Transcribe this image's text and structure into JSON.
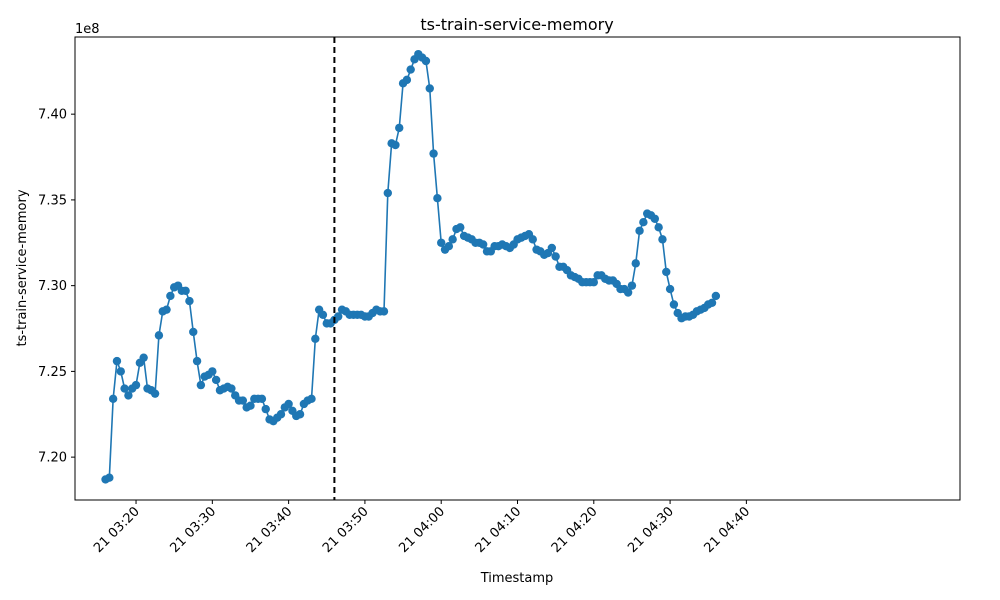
{
  "chart_data": {
    "type": "line",
    "title": "ts-train-service-memory",
    "xlabel": "Timestamp",
    "ylabel": "ts-train-service-memory",
    "offset_label": "1e8",
    "xlim_minutes": [
      12,
      128
    ],
    "ylim": [
      7.175,
      7.445
    ],
    "y_ticks": [
      7.2,
      7.25,
      7.3,
      7.35,
      7.4
    ],
    "y_tick_labels": [
      "7.20",
      "7.25",
      "7.30",
      "7.35",
      "7.40"
    ],
    "x_ticks_minutes": [
      20,
      30,
      40,
      50,
      60,
      70,
      80,
      90,
      100
    ],
    "x_tick_labels": [
      "21 03:20",
      "21 03:30",
      "21 03:40",
      "21 03:50",
      "21 04:00",
      "21 04:10",
      "21 04:20",
      "21 04:30",
      "21 04:40"
    ],
    "vline_minute": 46,
    "vline_style": "dashed black",
    "grid": false,
    "series": [
      {
        "color": "#1f77b4",
        "x": [
          16.0,
          16.5,
          17.0,
          17.5,
          18.0,
          18.5,
          19.0,
          19.5,
          20.0,
          20.5,
          21.0,
          21.5,
          22.0,
          22.5,
          23.0,
          23.5,
          24.0,
          24.5,
          25.0,
          25.5,
          26.0,
          26.5,
          27.0,
          27.5,
          28.0,
          28.5,
          29.0,
          29.5,
          30.0,
          30.5,
          31.0,
          31.5,
          32.0,
          32.5,
          33.0,
          33.5,
          34.0,
          34.5,
          35.0,
          35.5,
          36.0,
          36.5,
          37.0,
          37.5,
          38.0,
          38.5,
          39.0,
          39.5,
          40.0,
          40.5,
          41.0,
          41.5,
          42.0,
          42.5,
          43.0,
          43.5,
          44.0,
          44.5,
          45.0,
          45.5,
          46.0,
          46.5,
          47.0,
          47.5,
          48.0,
          48.5,
          49.0,
          49.5,
          50.0,
          50.5,
          51.0,
          51.5,
          52.0,
          52.5,
          53.0,
          53.5,
          54.0,
          54.5,
          55.0,
          55.5,
          56.0,
          56.5,
          57.0,
          57.5,
          58.0,
          58.5,
          59.0,
          59.5,
          60.0,
          60.5,
          61.0,
          61.5,
          62.0,
          62.5,
          63.0,
          63.5,
          64.0,
          64.5,
          65.0,
          65.5,
          66.0,
          66.5,
          67.0,
          67.5,
          68.0,
          68.5,
          69.0,
          69.5,
          70.0,
          70.5,
          71.0,
          71.5,
          72.0,
          72.5,
          73.0,
          73.5,
          74.0,
          74.5,
          75.0,
          75.5,
          76.0,
          76.5,
          77.0,
          77.5,
          78.0,
          78.5,
          79.0,
          79.5,
          80.0,
          80.5,
          81.0,
          81.5,
          82.0,
          82.5,
          83.0,
          83.5,
          84.0,
          84.5,
          85.0,
          85.5,
          86.0,
          86.5,
          87.0,
          87.5,
          88.0,
          88.5,
          89.0,
          89.5,
          90.0,
          90.5,
          91.0,
          91.5,
          92.0,
          92.5,
          93.0,
          93.5,
          94.0,
          94.5,
          95.0,
          95.5,
          96.0
        ],
        "y": [
          7.187,
          7.188,
          7.234,
          7.256,
          7.25,
          7.24,
          7.236,
          7.24,
          7.242,
          7.255,
          7.258,
          7.24,
          7.239,
          7.237,
          7.271,
          7.285,
          7.286,
          7.294,
          7.299,
          7.3,
          7.297,
          7.297,
          7.291,
          7.273,
          7.256,
          7.242,
          7.247,
          7.248,
          7.25,
          7.245,
          7.239,
          7.24,
          7.241,
          7.24,
          7.236,
          7.233,
          7.233,
          7.229,
          7.23,
          7.234,
          7.234,
          7.234,
          7.228,
          7.222,
          7.221,
          7.223,
          7.225,
          7.229,
          7.231,
          7.227,
          7.224,
          7.225,
          7.231,
          7.233,
          7.234,
          7.269,
          7.286,
          7.283,
          7.278,
          7.278,
          7.28,
          7.282,
          7.286,
          7.285,
          7.283,
          7.283,
          7.283,
          7.283,
          7.282,
          7.282,
          7.284,
          7.286,
          7.285,
          7.285,
          7.354,
          7.383,
          7.382,
          7.392,
          7.418,
          7.42,
          7.426,
          7.432,
          7.435,
          7.433,
          7.431,
          7.415,
          7.377,
          7.351,
          7.325,
          7.321,
          7.323,
          7.327,
          7.333,
          7.334,
          7.329,
          7.328,
          7.327,
          7.325,
          7.325,
          7.324,
          7.32,
          7.32,
          7.323,
          7.323,
          7.324,
          7.323,
          7.322,
          7.324,
          7.327,
          7.328,
          7.329,
          7.33,
          7.327,
          7.321,
          7.32,
          7.318,
          7.319,
          7.322,
          7.317,
          7.311,
          7.311,
          7.309,
          7.306,
          7.305,
          7.304,
          7.302,
          7.302,
          7.302,
          7.302,
          7.306,
          7.306,
          7.304,
          7.303,
          7.303,
          7.301,
          7.298,
          7.298,
          7.296,
          7.3,
          7.313,
          7.332,
          7.337,
          7.342,
          7.341,
          7.339,
          7.334,
          7.327,
          7.308,
          7.298,
          7.289,
          7.284,
          7.281,
          7.282,
          7.282,
          7.283,
          7.285,
          7.286,
          7.287,
          7.289,
          7.29,
          7.294
        ]
      }
    ]
  }
}
